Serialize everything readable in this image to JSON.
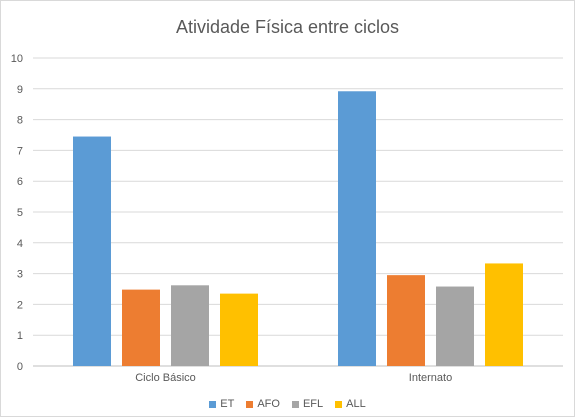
{
  "chart_data": {
    "type": "bar",
    "title": "Atividade Física entre ciclos",
    "categories": [
      "Ciclo Básico",
      "Internato"
    ],
    "series": [
      {
        "name": "ET",
        "color": "#5B9BD5",
        "values": [
          7.45,
          8.92
        ]
      },
      {
        "name": "AFO",
        "color": "#ED7D31",
        "values": [
          2.48,
          2.95
        ]
      },
      {
        "name": "EFL",
        "color": "#A5A5A5",
        "values": [
          2.62,
          2.58
        ]
      },
      {
        "name": "ALL",
        "color": "#FFC000",
        "values": [
          2.35,
          3.33
        ]
      }
    ],
    "ylim": [
      0,
      10
    ],
    "yticks": [
      "0",
      "1",
      "2",
      "3",
      "4",
      "5",
      "6",
      "7",
      "8",
      "9",
      "10"
    ],
    "grid": true,
    "legend_position": "bottom"
  }
}
